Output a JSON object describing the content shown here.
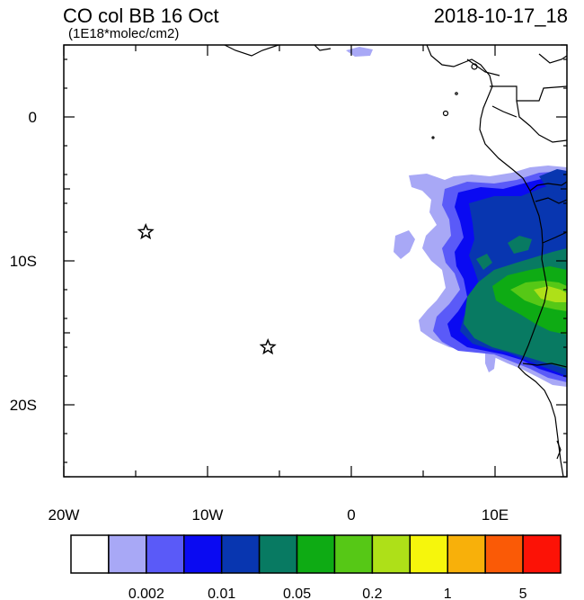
{
  "title": "CO col BB 16 Oct",
  "subtitle": "(1E18*molec/cm2)",
  "timestamp": "2018-10-17_18",
  "map": {
    "lon_range": [
      -20,
      15
    ],
    "lat_range": [
      -25,
      5
    ],
    "lon_ticks": [
      {
        "lon": -20,
        "label": "20W"
      },
      {
        "lon": -10,
        "label": "10W"
      },
      {
        "lon": 0,
        "label": "0"
      },
      {
        "lon": 10,
        "label": "10E"
      }
    ],
    "lat_ticks": [
      {
        "lat": 0,
        "label": "0"
      },
      {
        "lat": -10,
        "label": "10S"
      },
      {
        "lat": -20,
        "label": "20S"
      }
    ],
    "markers": [
      {
        "type": "star",
        "lon": -14.3,
        "lat": -8.0
      },
      {
        "type": "star",
        "lon": -5.8,
        "lat": -16.0
      }
    ]
  },
  "colorbar": {
    "colors": [
      "#ffffff",
      "#a8a8f6",
      "#5a5af8",
      "#0a0af2",
      "#0836b0",
      "#087a62",
      "#0eab14",
      "#56c816",
      "#aee018",
      "#f6f60c",
      "#f8b00a",
      "#fa5a06",
      "#fc1206"
    ],
    "labels": [
      {
        "boundary": 2,
        "text": "0.002"
      },
      {
        "boundary": 4,
        "text": "0.01"
      },
      {
        "boundary": 6,
        "text": "0.05"
      },
      {
        "boundary": 8,
        "text": "0.2"
      },
      {
        "boundary": 10,
        "text": "1"
      },
      {
        "boundary": 12,
        "text": "5"
      }
    ]
  }
}
